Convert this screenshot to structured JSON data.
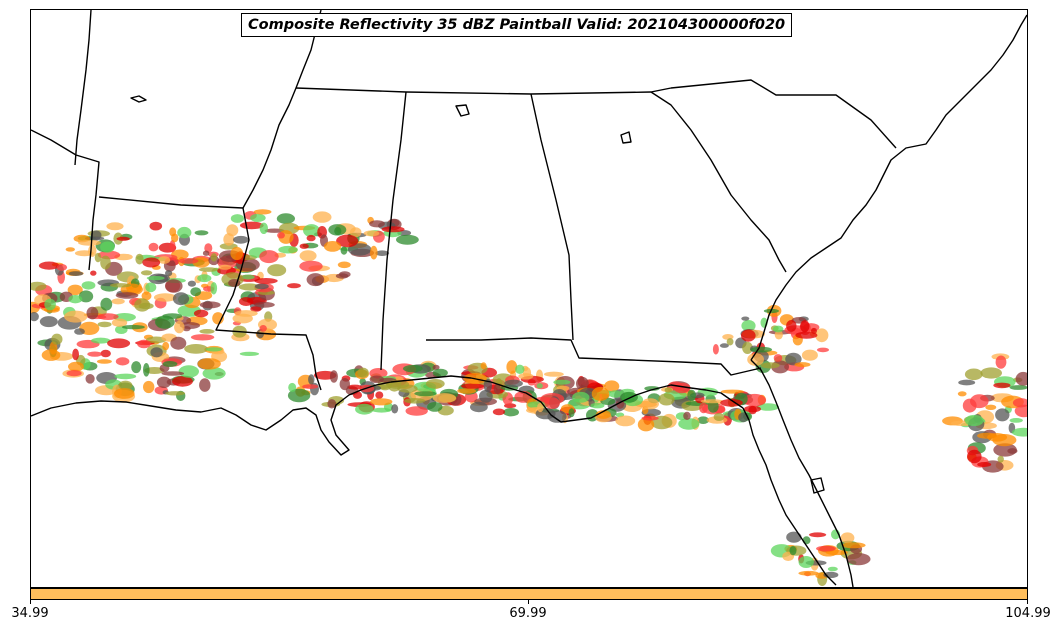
{
  "title": "Composite Reflectivity 35 dBZ Paintball Valid: 202104300000f020",
  "colorbar": {
    "color": "#ffbe5c",
    "ticks": [
      "34.99",
      "69.99",
      "104.99"
    ]
  },
  "paint_colors": [
    "#ff3b3b",
    "#e00000",
    "#ff8c00",
    "#ffb24d",
    "#2e8b2e",
    "#5cd65c",
    "#8b3a3a",
    "#a0a030",
    "#555555"
  ],
  "map_colors": {
    "borders": "#000000",
    "background": "#ffffff"
  }
}
